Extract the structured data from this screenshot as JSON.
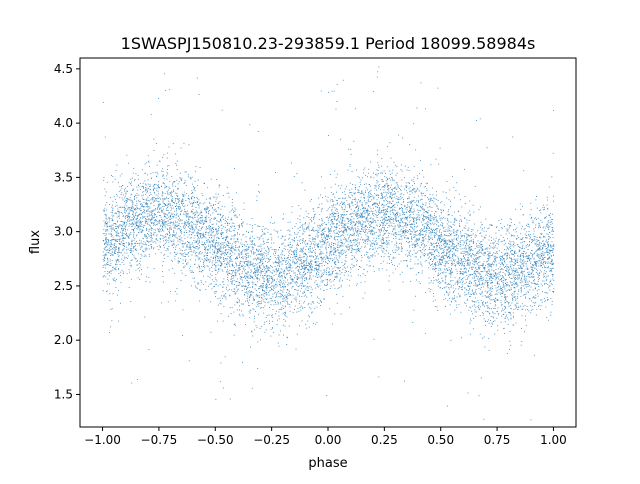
{
  "chart_data": {
    "type": "scatter",
    "title": "1SWASPJ150810.23-293859.1 Period 18099.58984s",
    "xlabel": "phase",
    "ylabel": "flux",
    "xlim": [
      -1.1,
      1.1
    ],
    "ylim": [
      1.2,
      4.6
    ],
    "grid": false,
    "legend": "none",
    "color": "#1f77b4",
    "xticks": [
      -1.0,
      -0.75,
      -0.5,
      -0.25,
      0.0,
      0.25,
      0.5,
      0.75,
      1.0
    ],
    "xtick_labels": [
      "−1.00",
      "−0.75",
      "−0.50",
      "−0.25",
      "0.00",
      "0.25",
      "0.50",
      "0.75",
      "1.00"
    ],
    "yticks": [
      1.5,
      2.0,
      2.5,
      3.0,
      3.5,
      4.0,
      4.5
    ],
    "ytick_labels": [
      "1.5",
      "2.0",
      "2.5",
      "3.0",
      "3.5",
      "4.0",
      "4.5"
    ],
    "series": [
      {
        "x": [
          -1.0,
          -0.9,
          -0.8,
          -0.75,
          -0.7,
          -0.6,
          -0.5,
          -0.4,
          -0.3,
          -0.25,
          -0.2,
          -0.1,
          0.0,
          0.1,
          0.2,
          0.25,
          0.3,
          0.4,
          0.5,
          0.6,
          0.7,
          0.75,
          0.8,
          0.9,
          1.0
        ],
        "y": [
          2.85,
          3.05,
          3.15,
          3.17,
          3.15,
          3.05,
          2.88,
          2.72,
          2.62,
          2.58,
          2.6,
          2.72,
          2.88,
          3.05,
          3.15,
          3.17,
          3.15,
          3.05,
          2.88,
          2.72,
          2.62,
          2.58,
          2.6,
          2.72,
          2.85
        ]
      }
    ],
    "scatter_half_width": 0.3
  }
}
